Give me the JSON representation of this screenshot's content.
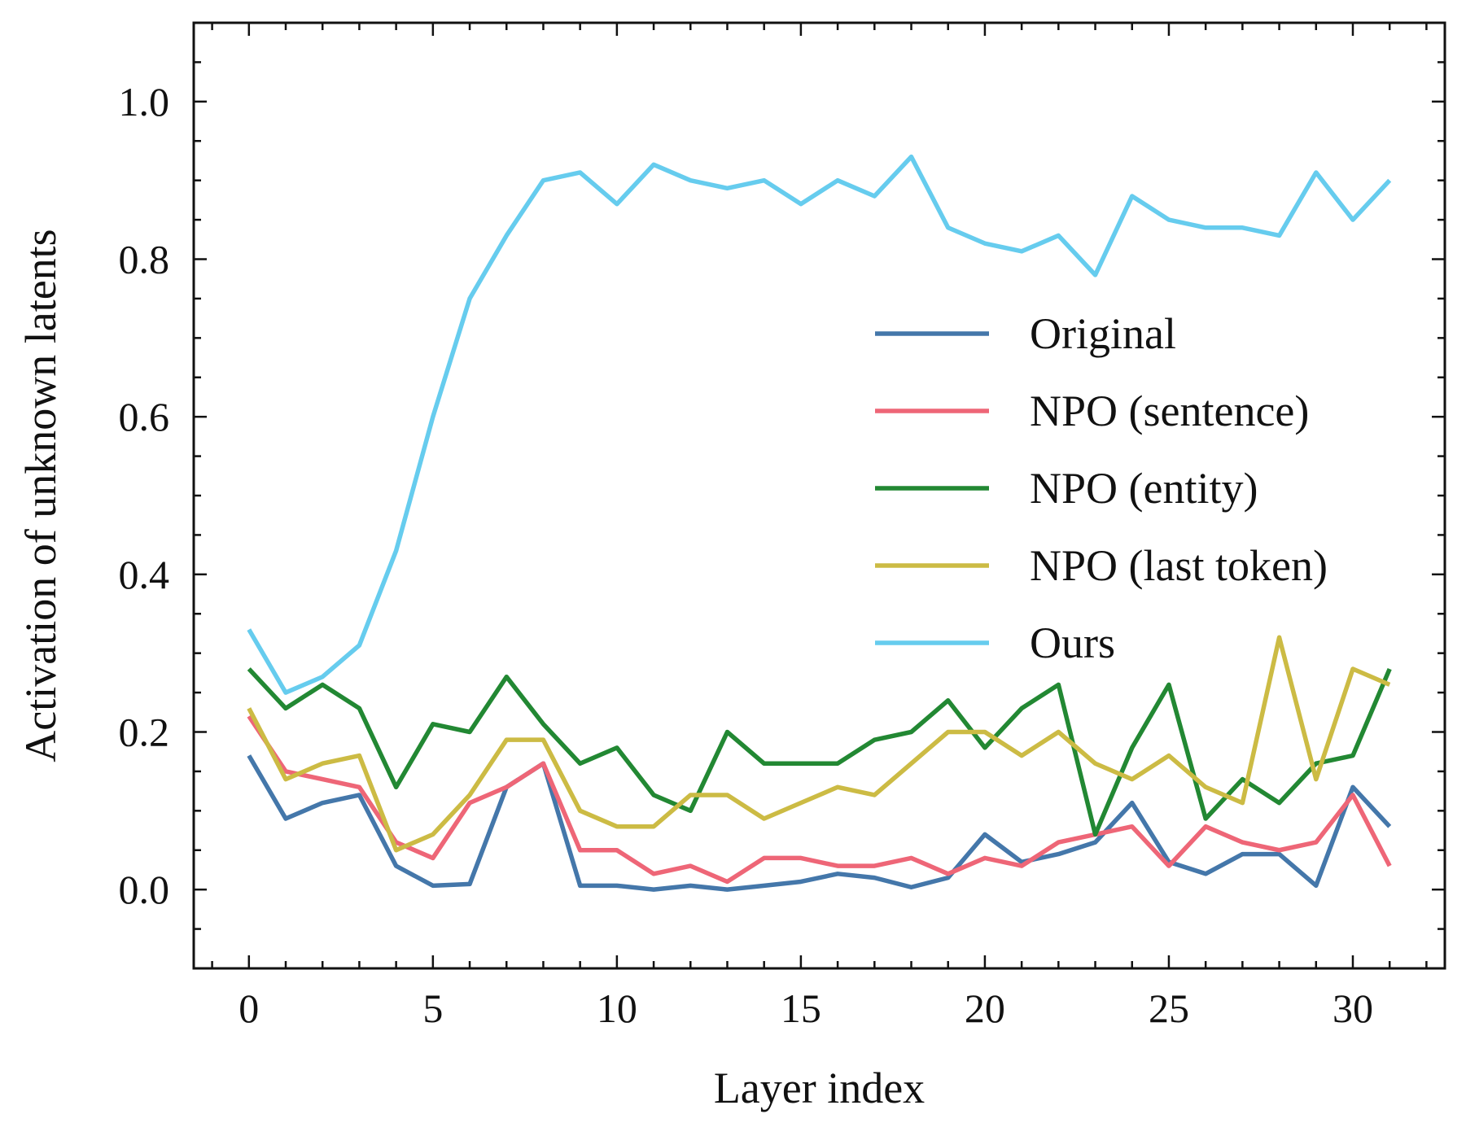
{
  "chart_data": {
    "type": "line",
    "title": "",
    "xlabel": "Layer index",
    "ylabel": "Activation of unknown latents",
    "xlim": [
      -1.5,
      32.5
    ],
    "ylim": [
      -0.1,
      1.1
    ],
    "xticks": [
      0,
      5,
      10,
      15,
      20,
      25,
      30
    ],
    "xtick_labels": [
      "0",
      "5",
      "10",
      "15",
      "20",
      "25",
      "30"
    ],
    "yticks": [
      0.0,
      0.2,
      0.4,
      0.6,
      0.8,
      1.0
    ],
    "ytick_labels": [
      "0.0",
      "0.2",
      "0.4",
      "0.6",
      "0.8",
      "1.0"
    ],
    "grid": false,
    "legend_position": "center-right",
    "x": [
      0,
      1,
      2,
      3,
      4,
      5,
      6,
      7,
      8,
      9,
      10,
      11,
      12,
      13,
      14,
      15,
      16,
      17,
      18,
      19,
      20,
      21,
      22,
      23,
      24,
      25,
      26,
      27,
      28,
      29,
      30,
      31
    ],
    "series": [
      {
        "name": "Original",
        "color": "#4477AA",
        "values": [
          0.17,
          0.09,
          0.11,
          0.12,
          0.03,
          0.005,
          0.007,
          0.13,
          0.16,
          0.005,
          0.005,
          0.0,
          0.005,
          0.0,
          0.005,
          0.01,
          0.02,
          0.015,
          0.003,
          0.015,
          0.07,
          0.035,
          0.045,
          0.06,
          0.11,
          0.035,
          0.02,
          0.045,
          0.045,
          0.005,
          0.13,
          0.08
        ]
      },
      {
        "name": "NPO (sentence)",
        "color": "#EE6677",
        "values": [
          0.22,
          0.15,
          0.14,
          0.13,
          0.06,
          0.04,
          0.11,
          0.13,
          0.16,
          0.05,
          0.05,
          0.02,
          0.03,
          0.01,
          0.04,
          0.04,
          0.03,
          0.03,
          0.04,
          0.02,
          0.04,
          0.03,
          0.06,
          0.07,
          0.08,
          0.03,
          0.08,
          0.06,
          0.05,
          0.06,
          0.12,
          0.03
        ]
      },
      {
        "name": "NPO (entity)",
        "color": "#228833",
        "values": [
          0.28,
          0.23,
          0.26,
          0.23,
          0.13,
          0.21,
          0.2,
          0.27,
          0.21,
          0.16,
          0.18,
          0.12,
          0.1,
          0.2,
          0.16,
          0.16,
          0.16,
          0.19,
          0.2,
          0.24,
          0.18,
          0.23,
          0.26,
          0.07,
          0.18,
          0.26,
          0.09,
          0.14,
          0.11,
          0.16,
          0.17,
          0.28
        ]
      },
      {
        "name": "NPO (last token)",
        "color": "#CCBB44",
        "values": [
          0.23,
          0.14,
          0.16,
          0.17,
          0.05,
          0.07,
          0.12,
          0.19,
          0.19,
          0.1,
          0.08,
          0.08,
          0.12,
          0.12,
          0.09,
          0.11,
          0.13,
          0.12,
          0.16,
          0.2,
          0.2,
          0.17,
          0.2,
          0.16,
          0.14,
          0.17,
          0.13,
          0.11,
          0.32,
          0.14,
          0.28,
          0.26
        ]
      },
      {
        "name": "Ours",
        "color": "#66CCEE",
        "values": [
          0.33,
          0.25,
          0.27,
          0.31,
          0.43,
          0.6,
          0.75,
          0.83,
          0.9,
          0.91,
          0.87,
          0.92,
          0.9,
          0.89,
          0.9,
          0.87,
          0.9,
          0.88,
          0.93,
          0.84,
          0.82,
          0.81,
          0.83,
          0.78,
          0.88,
          0.85,
          0.84,
          0.84,
          0.83,
          0.91,
          0.85,
          0.9
        ]
      }
    ]
  }
}
